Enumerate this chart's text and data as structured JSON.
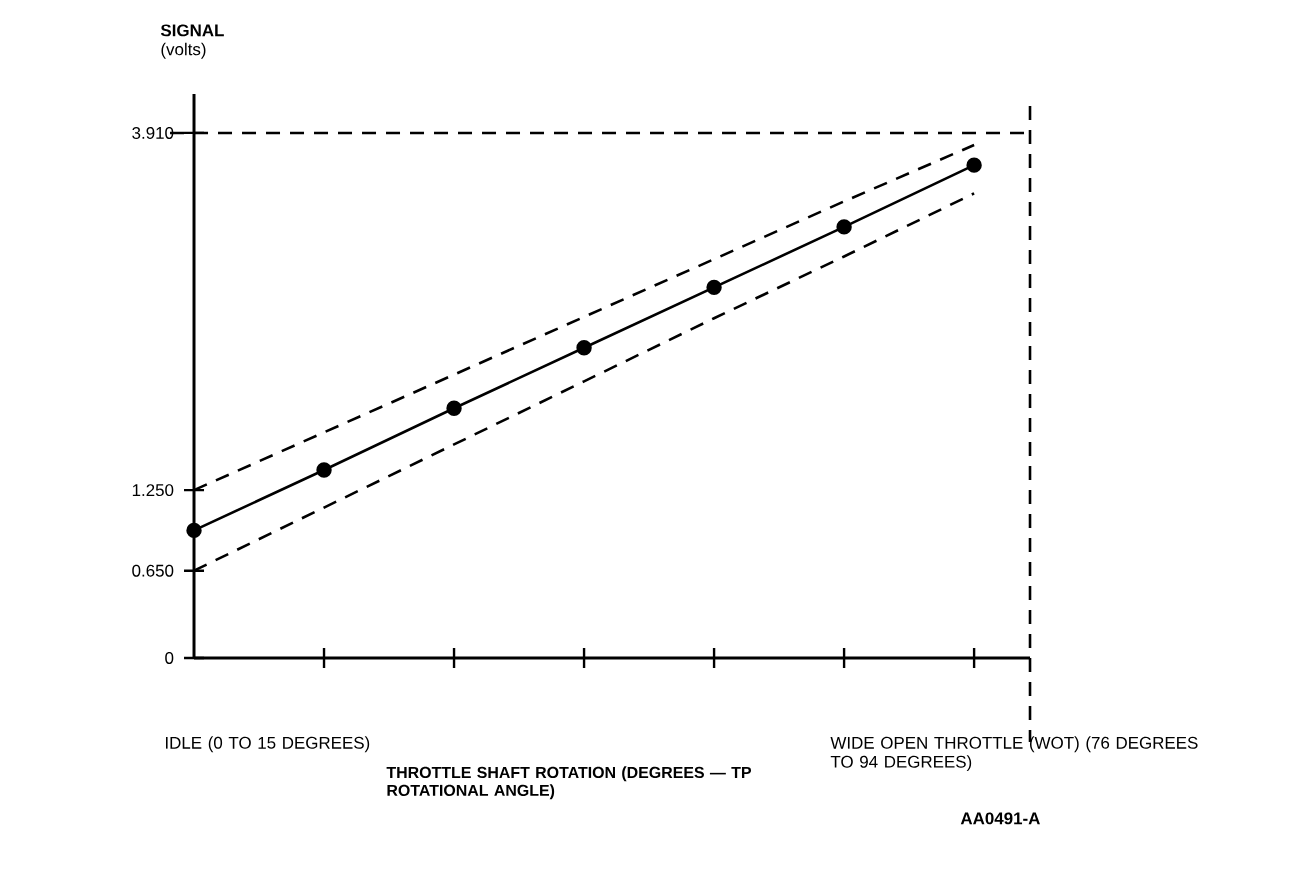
{
  "chart_data": {
    "type": "line",
    "ylabel": "**SIGNAL** (volts)",
    "categories": [
      null,
      null,
      null,
      null,
      null,
      null,
      null
    ],
    "ylim": [
      0,
      4.2
    ],
    "yticks": [
      {
        "value": 0,
        "label": "0"
      },
      {
        "value": 0.65,
        "label": "0.650"
      },
      {
        "value": 1.25,
        "label": "1.250"
      },
      {
        "value": 3.91,
        "label": "3.910"
      }
    ],
    "series": [
      {
        "color": "#000000",
        "line_style": "solid",
        "marker": "circle",
        "values": [
          0.95,
          1.4,
          1.86,
          2.31,
          2.76,
          3.21,
          3.67
        ]
      },
      {
        "color": "#000000",
        "line_style": "dashed",
        "values": [
          1.25,
          1.68,
          2.11,
          2.54,
          2.97,
          3.4,
          3.82
        ]
      },
      {
        "color": "#000000",
        "line_style": "dashed",
        "values": [
          0.65,
          1.12,
          1.59,
          2.06,
          2.53,
          2.99,
          3.46
        ]
      }
    ],
    "ref_lines": [
      {
        "axis": "y",
        "value": 3.91,
        "line_style": "dashed"
      }
    ],
    "annotations": [
      "IDLE (0 TO 15 DEGREES)",
      "THROTTLE SHAFT ROTATION (DEGREES — TP ROTATIONAL ANGLE)",
      "WIDE OPEN THROTTLE (WOT) (76 DEGREES TO 94 DEGREES)",
      "AA0491-A"
    ]
  }
}
